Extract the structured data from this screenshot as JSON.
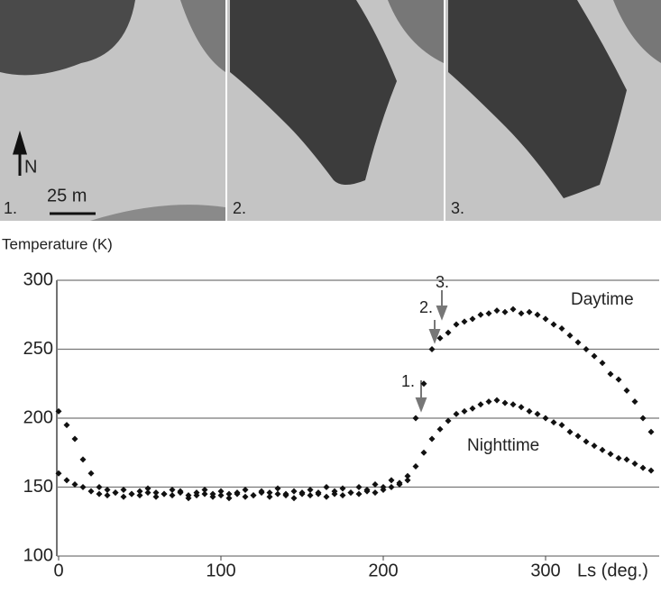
{
  "images": [
    {
      "label": "1."
    },
    {
      "label": "2."
    },
    {
      "label": "3."
    }
  ],
  "north_label": "N",
  "scale_label": "25 m",
  "chart_data": {
    "type": "scatter",
    "y_label": "Temperature (K)",
    "x_label": "Ls (deg.)",
    "annotations": [
      "1.",
      "2.",
      "3.",
      "Daytime",
      "Nighttime"
    ],
    "xlim": [
      0,
      370
    ],
    "xticks": [
      0,
      100,
      200,
      300
    ],
    "ylim": [
      100,
      300
    ],
    "yticks": [
      100,
      150,
      200,
      250,
      300
    ],
    "grid": true,
    "x": [
      0,
      5,
      10,
      15,
      20,
      25,
      30,
      35,
      40,
      45,
      50,
      55,
      60,
      65,
      70,
      75,
      80,
      85,
      90,
      95,
      100,
      105,
      110,
      115,
      120,
      125,
      130,
      135,
      140,
      145,
      150,
      155,
      160,
      165,
      170,
      175,
      180,
      185,
      190,
      195,
      200,
      205,
      210,
      215,
      220,
      225,
      230,
      235,
      240,
      245,
      250,
      255,
      260,
      265,
      270,
      275,
      280,
      285,
      290,
      295,
      300,
      305,
      310,
      315,
      320,
      325,
      330,
      335,
      340,
      345,
      350,
      355,
      360,
      365
    ],
    "series": [
      {
        "name": "Daytime",
        "color": "#111111",
        "values": [
          205,
          195,
          185,
          170,
          160,
          150,
          148,
          146,
          148,
          145,
          147,
          149,
          146,
          145,
          148,
          147,
          144,
          146,
          148,
          145,
          147,
          145,
          146,
          148,
          144,
          147,
          146,
          149,
          145,
          147,
          146,
          148,
          145,
          150,
          147,
          149,
          146,
          150,
          148,
          152,
          150,
          155,
          153,
          158,
          200,
          225,
          250,
          258,
          262,
          268,
          270,
          272,
          275,
          276,
          278,
          277,
          279,
          276,
          277,
          275,
          272,
          268,
          265,
          260,
          255,
          250,
          245,
          240,
          232,
          228,
          220,
          212,
          200,
          190
        ]
      },
      {
        "name": "Nighttime",
        "color": "#111111",
        "values": [
          160,
          155,
          152,
          150,
          147,
          145,
          144,
          146,
          143,
          145,
          144,
          146,
          143,
          145,
          144,
          146,
          142,
          144,
          145,
          143,
          144,
          142,
          145,
          143,
          144,
          146,
          143,
          145,
          144,
          142,
          145,
          144,
          146,
          143,
          145,
          144,
          146,
          145,
          147,
          146,
          148,
          150,
          152,
          155,
          165,
          175,
          185,
          192,
          198,
          203,
          205,
          207,
          210,
          212,
          213,
          211,
          210,
          208,
          205,
          203,
          200,
          197,
          195,
          190,
          187,
          183,
          180,
          177,
          174,
          171,
          170,
          167,
          164,
          162
        ]
      }
    ]
  }
}
